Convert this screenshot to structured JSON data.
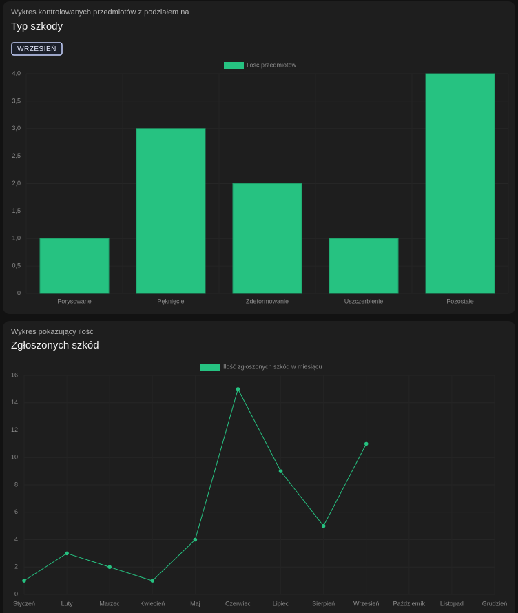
{
  "filter_button": "WRZESIEŃ",
  "chart_data": [
    {
      "type": "bar",
      "subtitle": "Wykres kontrolowanych przedmiotów z podziałem na",
      "title": "Typ szkody",
      "legend": "Ilość przedmiotów",
      "color": "#26c281",
      "categories": [
        "Porysowane",
        "Pęknięcie",
        "Zdeformowanie",
        "Uszczerbienie",
        "Pozostałe"
      ],
      "values": [
        1,
        3,
        2,
        1,
        4
      ],
      "ylim": [
        0,
        4
      ],
      "yticks": [
        0,
        {
          "value": 0.5,
          "label": "0,5"
        },
        {
          "value": 1,
          "label": "1,0"
        },
        {
          "value": 1.5,
          "label": "1,5"
        },
        {
          "value": 2,
          "label": "2,0"
        },
        {
          "value": 2.5,
          "label": "2,5"
        },
        {
          "value": 3,
          "label": "3,0"
        },
        {
          "value": 3.5,
          "label": "3,5"
        },
        {
          "value": 4,
          "label": "4,0"
        }
      ],
      "grid": true
    },
    {
      "type": "line",
      "subtitle": "Wykres pokazujący ilość",
      "title": "Zgłoszonych szkód",
      "legend": "Ilość zgłoszonych szkód w miesiącu",
      "color": "#26c281",
      "categories": [
        "Styczeń",
        "Luty",
        "Marzec",
        "Kwiecień",
        "Maj",
        "Czerwiec",
        "Lipiec",
        "Sierpień",
        "Wrzesień",
        "Październik",
        "Listopad",
        "Grudzień"
      ],
      "values": [
        1,
        3,
        2,
        1,
        4,
        15,
        9,
        5,
        11,
        null,
        null,
        null
      ],
      "ylim": [
        0,
        16
      ],
      "yticks": [
        0,
        2,
        4,
        6,
        8,
        10,
        12,
        14,
        16
      ],
      "grid": true
    }
  ]
}
